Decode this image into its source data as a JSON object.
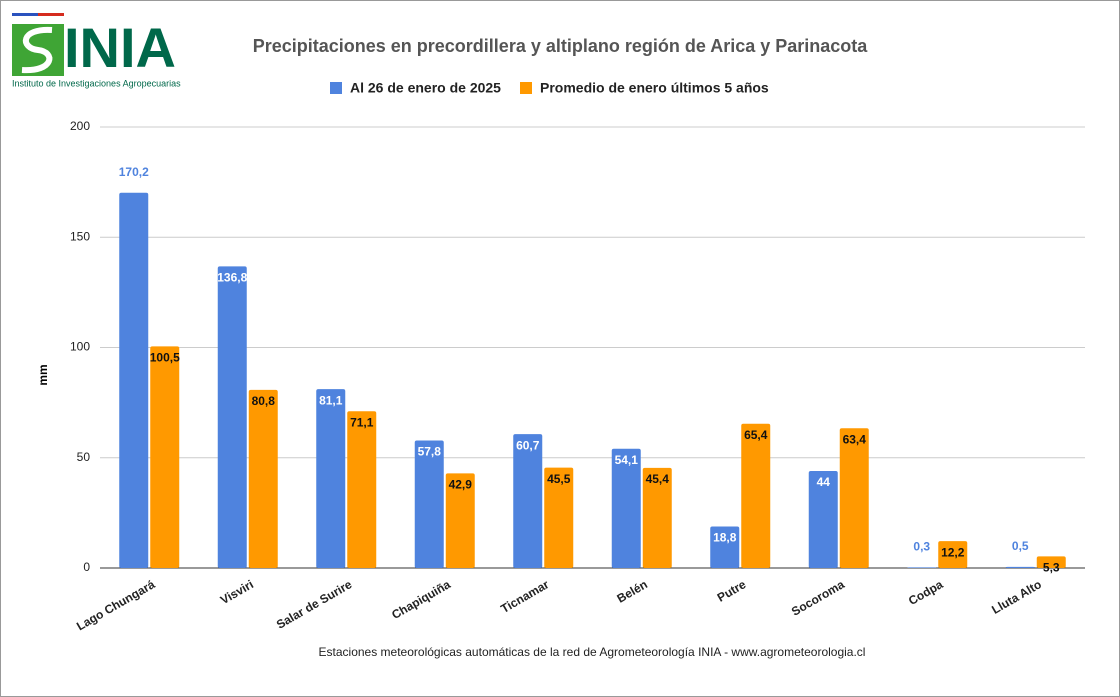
{
  "logo": {
    "name": "INIA",
    "subtitle": "Instituto de Investigaciones Agropecuarias"
  },
  "chart_data": {
    "type": "bar",
    "title": "Precipitaciones en precordillera y altiplano región de Arica y Parinacota",
    "y_label": "mm",
    "footnote": "Estaciones meteorológicas automáticas de la red de Agrometeorología INIA - www.agrometeorologia.cl",
    "categories": [
      "Lago Chungará",
      "Visviri",
      "Salar de Surire",
      "Chapiquiña",
      "Ticnamar",
      "Belén",
      "Putre",
      "Socoroma",
      "Codpa",
      "Lluta Alto"
    ],
    "series": [
      {
        "name": "Al 26 de enero de 2025",
        "color": "#4f83de",
        "values": [
          170.2,
          136.8,
          81.1,
          57.8,
          60.7,
          54.1,
          18.8,
          44,
          0.3,
          0.5
        ],
        "value_labels": [
          "170,2",
          "136,8",
          "81,1",
          "57,8",
          "60,7",
          "54,1",
          "18,8",
          "44",
          "0,3",
          "0,5"
        ]
      },
      {
        "name": "Promedio de enero últimos 5 años",
        "color": "#ff9900",
        "values": [
          100.5,
          80.8,
          71.1,
          42.9,
          45.5,
          45.4,
          65.4,
          63.4,
          12.2,
          5.3
        ],
        "value_labels": [
          "100,5",
          "80,8",
          "71,1",
          "42,9",
          "45,5",
          "45,4",
          "65,4",
          "63,4",
          "12,2",
          "5,3"
        ]
      }
    ],
    "ylim": [
      0,
      200
    ],
    "yticks": [
      0,
      50,
      100,
      150,
      200
    ],
    "grid": true,
    "legend": "top"
  }
}
